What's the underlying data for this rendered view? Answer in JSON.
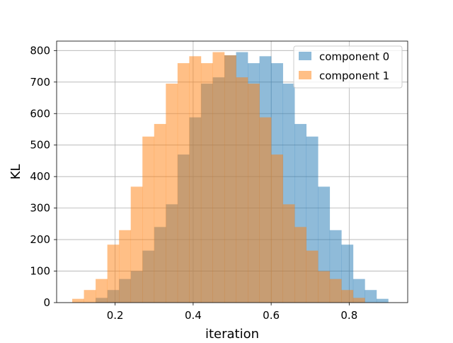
{
  "chart_data": {
    "type": "histogram",
    "xlabel": "iteration",
    "ylabel": "KL",
    "xlim": [
      0.05,
      0.95
    ],
    "ylim": [
      0,
      830
    ],
    "xticks": [
      0.2,
      0.4,
      0.6,
      0.8
    ],
    "xtick_labels": [
      "0.2",
      "0.4",
      "0.6",
      "0.8"
    ],
    "yticks": [
      0,
      100,
      200,
      300,
      400,
      500,
      600,
      700,
      800
    ],
    "ytick_labels": [
      "0",
      "100",
      "200",
      "300",
      "400",
      "500",
      "600",
      "700",
      "800"
    ],
    "grid": true,
    "legend_position": "top-right",
    "series": [
      {
        "name": "component 0",
        "color": "#1f77b4",
        "alpha": 0.5,
        "bin_edges": [
          0.15,
          0.18,
          0.21,
          0.24,
          0.27,
          0.3,
          0.33,
          0.36,
          0.39,
          0.42,
          0.45,
          0.48,
          0.51,
          0.54,
          0.57,
          0.6,
          0.63,
          0.66,
          0.69,
          0.72,
          0.75,
          0.78,
          0.81,
          0.84,
          0.87,
          0.9
        ],
        "values": [
          15,
          40,
          75,
          100,
          165,
          240,
          312,
          470,
          588,
          695,
          715,
          785,
          795,
          760,
          782,
          760,
          695,
          567,
          527,
          368,
          230,
          184,
          75,
          40,
          12
        ]
      },
      {
        "name": "component 1",
        "color": "#ff7f0e",
        "alpha": 0.5,
        "bin_edges": [
          0.09,
          0.12,
          0.15,
          0.18,
          0.21,
          0.24,
          0.27,
          0.3,
          0.33,
          0.36,
          0.39,
          0.42,
          0.45,
          0.48,
          0.51,
          0.54,
          0.57,
          0.6,
          0.63,
          0.66,
          0.69,
          0.72,
          0.75,
          0.78,
          0.81,
          0.84
        ],
        "values": [
          12,
          40,
          75,
          184,
          230,
          368,
          527,
          567,
          695,
          760,
          782,
          760,
          795,
          785,
          715,
          695,
          588,
          470,
          312,
          240,
          165,
          100,
          75,
          40,
          15
        ]
      }
    ]
  }
}
